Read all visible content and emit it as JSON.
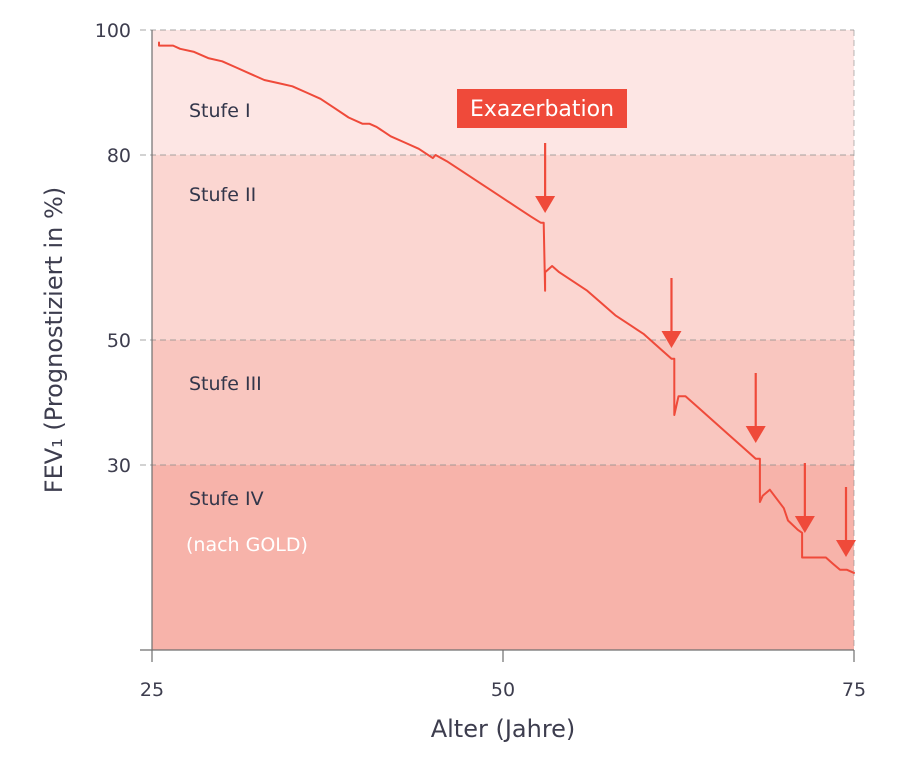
{
  "chart_data": {
    "type": "line",
    "xlabel": "Alter (Jahre)",
    "ylabel": "FEV₁ (Prognostiziert in %)",
    "xlim": [
      25,
      75
    ],
    "ylim": [
      0,
      100
    ],
    "x_ticks": [
      25,
      50,
      75
    ],
    "y_ticks": [
      30,
      50,
      80,
      100
    ],
    "grid": "dashed lines at stage boundaries",
    "stages": [
      {
        "label": "Stufe I",
        "from": 80,
        "to": 100,
        "color": "#fde6e4"
      },
      {
        "label": "Stufe II",
        "from": 50,
        "to": 80,
        "color": "#fbd6d1"
      },
      {
        "label": "Stufe III",
        "from": 30,
        "to": 50,
        "color": "#f9c6bf"
      },
      {
        "label": "Stufe IV",
        "from": 0,
        "to": 30,
        "color": "#f7b3aa"
      }
    ],
    "stage_note": "(nach GOLD)",
    "exacerbation_label": "Exazerbation",
    "exacerbation_ages": [
      53,
      62,
      68,
      71.5,
      75
    ],
    "line_color": "#ef4a3a",
    "series": [
      {
        "x": [
          25.5,
          25.5,
          26.5,
          27,
          28,
          29,
          30,
          31,
          32,
          33,
          34,
          35,
          36,
          37,
          38,
          39,
          40,
          40.5,
          41,
          42,
          43,
          44,
          45,
          45.2,
          46,
          47,
          48,
          49,
          50,
          51,
          52,
          52.7,
          52.9,
          53,
          53,
          53.5,
          54,
          55,
          56,
          57,
          58,
          59,
          60,
          61,
          62,
          62.2,
          62.2,
          62.5,
          63,
          64,
          65,
          66,
          67,
          68,
          68.3,
          68.3,
          68.5,
          69,
          70,
          70.3,
          71,
          71.3,
          71.3,
          72,
          73,
          73.5,
          74,
          74.5,
          75
        ],
        "y": [
          98,
          97.5,
          97.5,
          97,
          96.5,
          95.5,
          95,
          94,
          93,
          92,
          91.5,
          91,
          90,
          89,
          87.5,
          86,
          85,
          85,
          84.5,
          83,
          82,
          81,
          79.5,
          80,
          79,
          77.5,
          76,
          74.5,
          73,
          71.5,
          70,
          69,
          69,
          58,
          61,
          62,
          61,
          59.5,
          58,
          56,
          54,
          52.5,
          51,
          49,
          47,
          47,
          38,
          41,
          41,
          39,
          37,
          35,
          33,
          31,
          31,
          24,
          25,
          26,
          23,
          21,
          19.5,
          19,
          15,
          15,
          15,
          14,
          13,
          13,
          12.5
        ]
      }
    ]
  }
}
